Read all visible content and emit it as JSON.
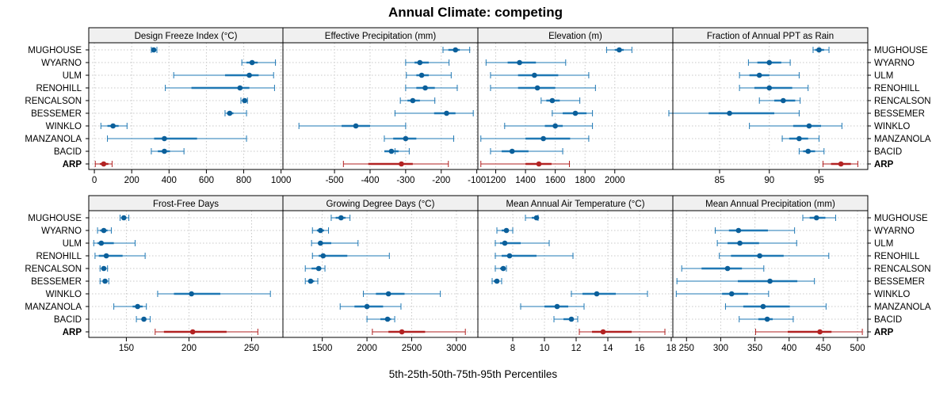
{
  "title": "Annual Climate: competing",
  "colors": {
    "site": "#1f78b4",
    "site_point": "#0b5f9a",
    "arp": "#b22222",
    "strip_bg": "#f0f0f0",
    "grid": "#c8c8c8"
  },
  "chart_data": {
    "type": "dot-interval",
    "title": "Annual Climate: competing",
    "xlabel": "5th-25th-50th-75th-95th Percentiles",
    "sites": [
      "MUGHOUSE",
      "WYARNO",
      "ULM",
      "RENOHILL",
      "RENCALSON",
      "BESSEMER",
      "WINKLO",
      "MANZANOLA",
      "BACID",
      "ARP"
    ],
    "highlight_site": "ARP",
    "panels": [
      {
        "title": "Design Freeze Index (°C)",
        "xlim": [
          -30,
          1010
        ],
        "ticks": [
          0,
          200,
          400,
          600,
          800,
          1000
        ],
        "tick_labels": [
          "0",
          "200",
          "400",
          "600",
          "800",
          "1000"
        ],
        "stats": [
          [
            305,
            310,
            318,
            325,
            335
          ],
          [
            790,
            815,
            845,
            875,
            970
          ],
          [
            425,
            700,
            830,
            880,
            960
          ],
          [
            380,
            520,
            780,
            830,
            965
          ],
          [
            785,
            795,
            805,
            812,
            820
          ],
          [
            700,
            710,
            725,
            745,
            815
          ],
          [
            35,
            70,
            100,
            130,
            175
          ],
          [
            70,
            320,
            375,
            550,
            815
          ],
          [
            305,
            340,
            375,
            405,
            480
          ],
          [
            5,
            30,
            50,
            75,
            95
          ]
        ]
      },
      {
        "title": "Effective Precipitation (mm)",
        "xlim": [
          -645,
          -97
        ],
        "ticks": [
          -500,
          -400,
          -300,
          -200,
          -100
        ],
        "tick_labels": [
          "-500",
          "-400",
          "-300",
          "-200",
          "-100"
        ],
        "stats": [
          [
            -195,
            -180,
            -160,
            -148,
            -120
          ],
          [
            -300,
            -275,
            -260,
            -235,
            -178
          ],
          [
            -298,
            -270,
            -255,
            -235,
            -172
          ],
          [
            -300,
            -270,
            -245,
            -218,
            -155
          ],
          [
            -315,
            -295,
            -280,
            -260,
            -218
          ],
          [
            -330,
            -220,
            -185,
            -160,
            -110
          ],
          [
            -600,
            -480,
            -440,
            -400,
            -300
          ],
          [
            -360,
            -335,
            -300,
            -270,
            -165
          ],
          [
            -330,
            -360,
            -340,
            -320,
            -290
          ],
          [
            -475,
            -405,
            -312,
            -280,
            -180
          ]
        ]
      },
      {
        "title": "Elevation (m)",
        "xlim": [
          1080,
          2390
        ],
        "ticks": [
          1200,
          1400,
          1600,
          1800,
          2000
        ],
        "tick_labels": [
          "1200",
          "1400",
          "1600",
          "1800",
          "2000"
        ],
        "stats": [
          [
            1945,
            2000,
            2030,
            2060,
            2115
          ],
          [
            1135,
            1280,
            1360,
            1470,
            1670
          ],
          [
            1165,
            1350,
            1460,
            1620,
            1825
          ],
          [
            1165,
            1350,
            1480,
            1600,
            1870
          ],
          [
            1505,
            1540,
            1580,
            1630,
            1765
          ],
          [
            1580,
            1650,
            1735,
            1810,
            1850
          ],
          [
            1260,
            1530,
            1600,
            1650,
            1850
          ],
          [
            1100,
            1400,
            1520,
            1700,
            1825
          ],
          [
            1165,
            1240,
            1310,
            1420,
            1650
          ],
          [
            1100,
            1400,
            1490,
            1575,
            1695
          ]
        ]
      },
      {
        "title": "Fraction of Annual PPT as Rain",
        "xlim": [
          80.3,
          99.9
        ],
        "ticks": [
          85,
          90,
          95
        ],
        "tick_labels": [
          "85",
          "90",
          "95"
        ],
        "stats": [
          [
            94.4,
            94.6,
            95.0,
            95.5,
            96.0
          ],
          [
            87.9,
            88.8,
            90.0,
            91.2,
            92.1
          ],
          [
            87.0,
            88.0,
            89.0,
            90.0,
            93.0
          ],
          [
            87.0,
            88.5,
            90.0,
            92.3,
            93.9
          ],
          [
            89.0,
            90.5,
            91.4,
            92.6,
            93.1
          ],
          [
            79.9,
            83.9,
            86.0,
            90.5,
            93.0
          ],
          [
            88.0,
            92.4,
            94.0,
            95.2,
            97.3
          ],
          [
            91.3,
            92.0,
            93.0,
            93.9,
            95.0
          ],
          [
            93.0,
            93.4,
            93.9,
            94.6,
            95.5
          ],
          [
            95.4,
            96.2,
            97.2,
            98.2,
            98.9
          ]
        ]
      },
      {
        "title": "Frost-Free Days",
        "xlim": [
          120,
          275
        ],
        "ticks": [
          150,
          200,
          250
        ],
        "tick_labels": [
          "150",
          "200",
          "250"
        ],
        "stats": [
          [
            145,
            146,
            148,
            150,
            152
          ],
          [
            127,
            129,
            132,
            135,
            138
          ],
          [
            124,
            127,
            130,
            140,
            157
          ],
          [
            125,
            128,
            134,
            147,
            165
          ],
          [
            129,
            130,
            132,
            134,
            135
          ],
          [
            129,
            131,
            133,
            134,
            136
          ],
          [
            175,
            188,
            202,
            225,
            265
          ],
          [
            140,
            155,
            159,
            163,
            166
          ],
          [
            158,
            162,
            164,
            166,
            169
          ],
          [
            173,
            180,
            203,
            230,
            255
          ]
        ]
      },
      {
        "title": "Growing Degree Days (°C)",
        "xlim": [
          1060,
          3240
        ],
        "ticks": [
          1500,
          2000,
          2500,
          3000
        ],
        "tick_labels": [
          "1500",
          "2000",
          "2500",
          "3000"
        ],
        "stats": [
          [
            1600,
            1650,
            1710,
            1760,
            1810
          ],
          [
            1390,
            1440,
            1480,
            1520,
            1570
          ],
          [
            1380,
            1450,
            1480,
            1600,
            1900
          ],
          [
            1390,
            1460,
            1510,
            1780,
            2250
          ],
          [
            1310,
            1380,
            1460,
            1490,
            1530
          ],
          [
            1310,
            1340,
            1370,
            1410,
            1450
          ],
          [
            1960,
            2100,
            2240,
            2420,
            2820
          ],
          [
            1700,
            1860,
            2000,
            2180,
            2380
          ],
          [
            2000,
            2150,
            2230,
            2270,
            2310
          ],
          [
            2060,
            2240,
            2390,
            2650,
            3100
          ]
        ]
      },
      {
        "title": "Mean Annual Air Temperature (°C)",
        "xlim": [
          5.8,
          18.1
        ],
        "ticks": [
          8,
          10,
          12,
          14,
          16,
          18
        ],
        "tick_labels": [
          "8",
          "10",
          "12",
          "14",
          "16",
          "18"
        ],
        "stats": [
          [
            8.8,
            9.2,
            9.5,
            9.55,
            9.6
          ],
          [
            7.0,
            7.3,
            7.6,
            7.7,
            8.0
          ],
          [
            6.9,
            7.2,
            7.5,
            8.5,
            10.3
          ],
          [
            6.9,
            7.3,
            7.8,
            9.5,
            11.8
          ],
          [
            6.9,
            7.2,
            7.4,
            7.5,
            7.6
          ],
          [
            6.7,
            6.8,
            7.0,
            7.1,
            7.3
          ],
          [
            11.7,
            12.4,
            13.3,
            14.5,
            16.5
          ],
          [
            8.5,
            10.0,
            10.8,
            11.5,
            12.5
          ],
          [
            10.6,
            11.2,
            11.7,
            11.8,
            12.1
          ],
          [
            12.2,
            13.0,
            13.7,
            15.5,
            17.6
          ]
        ]
      },
      {
        "title": "Mean Annual Precipitation (mm)",
        "xlim": [
          230,
          515
        ],
        "ticks": [
          250,
          300,
          350,
          400,
          450,
          500
        ],
        "tick_labels": [
          "250",
          "300",
          "350",
          "400",
          "450",
          "500"
        ],
        "stats": [
          [
            420,
            430,
            440,
            453,
            468
          ],
          [
            292,
            312,
            326,
            369,
            408
          ],
          [
            295,
            310,
            328,
            356,
            411
          ],
          [
            298,
            315,
            357,
            392,
            458
          ],
          [
            243,
            272,
            310,
            331,
            363
          ],
          [
            236,
            325,
            372,
            412,
            437
          ],
          [
            235,
            302,
            316,
            340,
            370
          ],
          [
            307,
            333,
            362,
            401,
            454
          ],
          [
            327,
            355,
            368,
            376,
            406
          ],
          [
            351,
            398,
            445,
            462,
            507
          ]
        ]
      }
    ]
  }
}
